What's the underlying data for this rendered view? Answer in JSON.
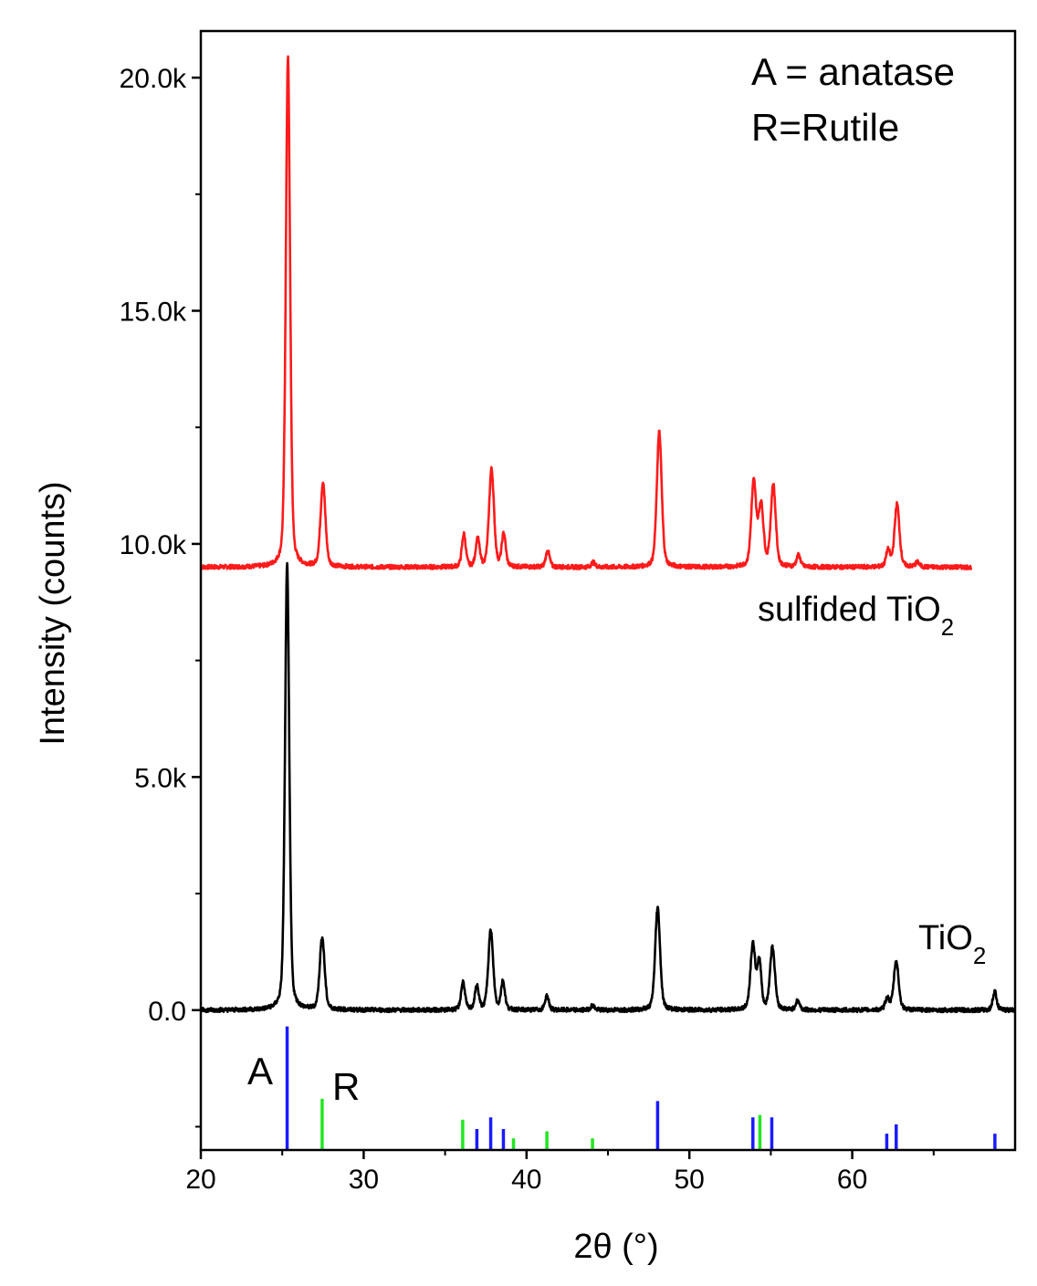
{
  "chart_data": {
    "type": "line",
    "xlabel": "2θ (°)",
    "ylabel": "Intensity (counts)",
    "xlim": [
      20,
      70
    ],
    "ylim": [
      -3000,
      21000
    ],
    "x_ticks": [
      {
        "value": 20,
        "label": "20"
      },
      {
        "value": 30,
        "label": "30"
      },
      {
        "value": 40,
        "label": "40"
      },
      {
        "value": 50,
        "label": "50"
      },
      {
        "value": 60,
        "label": "60"
      }
    ],
    "y_ticks": [
      {
        "value": 0,
        "label": "0.0"
      },
      {
        "value": 5000,
        "label": "5.0k"
      },
      {
        "value": 10000,
        "label": "10.0k"
      },
      {
        "value": 15000,
        "label": "15.0k"
      },
      {
        "value": 20000,
        "label": "20.0k"
      }
    ],
    "grid": false,
    "legend": {
      "position": "top-right",
      "items": [
        {
          "text": "A = anatase",
          "color": "#1a1aff"
        },
        {
          "text": "R=Rutile",
          "color": "#22e622"
        }
      ]
    },
    "series": [
      {
        "name": "sulfided TiO",
        "name_subscript": "2",
        "color": "#ff1a1a",
        "baseline": 9500,
        "x_range": [
          20,
          67.3
        ],
        "peaks": [
          {
            "x": 25.35,
            "y": 20450
          },
          {
            "x": 27.5,
            "y": 11300
          },
          {
            "x": 36.15,
            "y": 10200
          },
          {
            "x": 37.0,
            "y": 10100
          },
          {
            "x": 37.85,
            "y": 11600
          },
          {
            "x": 38.6,
            "y": 10200
          },
          {
            "x": 41.3,
            "y": 9850
          },
          {
            "x": 44.1,
            "y": 9600
          },
          {
            "x": 48.15,
            "y": 12400
          },
          {
            "x": 53.95,
            "y": 11300
          },
          {
            "x": 54.4,
            "y": 10800
          },
          {
            "x": 55.15,
            "y": 11250
          },
          {
            "x": 56.7,
            "y": 9750
          },
          {
            "x": 62.2,
            "y": 9850
          },
          {
            "x": 62.75,
            "y": 10850
          },
          {
            "x": 64.0,
            "y": 9600
          }
        ]
      },
      {
        "name": "TiO",
        "name_subscript": "2",
        "color": "#000000",
        "baseline": 0,
        "x_range": [
          20,
          70
        ],
        "peaks": [
          {
            "x": 25.3,
            "y": 9550
          },
          {
            "x": 27.45,
            "y": 1550
          },
          {
            "x": 36.1,
            "y": 600
          },
          {
            "x": 36.95,
            "y": 500
          },
          {
            "x": 37.8,
            "y": 1700
          },
          {
            "x": 38.55,
            "y": 600
          },
          {
            "x": 41.25,
            "y": 300
          },
          {
            "x": 44.05,
            "y": 100
          },
          {
            "x": 48.05,
            "y": 2200
          },
          {
            "x": 53.9,
            "y": 1400
          },
          {
            "x": 54.3,
            "y": 1000
          },
          {
            "x": 55.1,
            "y": 1350
          },
          {
            "x": 56.65,
            "y": 200
          },
          {
            "x": 62.15,
            "y": 250
          },
          {
            "x": 62.7,
            "y": 1050
          },
          {
            "x": 68.75,
            "y": 400
          }
        ]
      }
    ],
    "reference_lines": {
      "baseline": -3000,
      "anatase": {
        "label": "A",
        "color": "#1a1aff",
        "positions": [
          {
            "x": 25.3,
            "y": -350
          },
          {
            "x": 36.95,
            "y": -2550
          },
          {
            "x": 37.8,
            "y": -2300
          },
          {
            "x": 38.58,
            "y": -2550
          },
          {
            "x": 48.05,
            "y": -1950
          },
          {
            "x": 53.9,
            "y": -2300
          },
          {
            "x": 55.06,
            "y": -2300
          },
          {
            "x": 62.12,
            "y": -2650
          },
          {
            "x": 62.7,
            "y": -2450
          },
          {
            "x": 68.76,
            "y": -2650
          }
        ]
      },
      "rutile": {
        "label": "R",
        "color": "#22e622",
        "positions": [
          {
            "x": 27.45,
            "y": -1900
          },
          {
            "x": 36.08,
            "y": -2350
          },
          {
            "x": 39.2,
            "y": -2750
          },
          {
            "x": 41.25,
            "y": -2600
          },
          {
            "x": 44.05,
            "y": -2750
          },
          {
            "x": 54.33,
            "y": -2250
          }
        ]
      }
    }
  }
}
